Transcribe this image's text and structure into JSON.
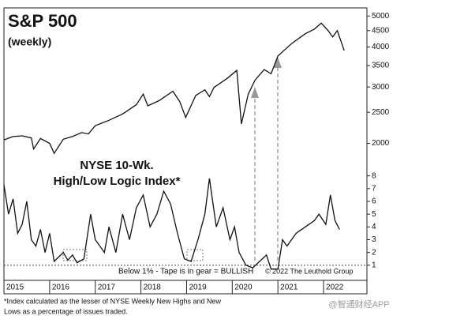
{
  "chart_data": [
    {
      "type": "line",
      "title": "S&P 500",
      "subtitle": "(weekly)",
      "log_scale": true,
      "color": "#111111",
      "xlim": [
        2015,
        2022.95
      ],
      "ylim": [
        1800,
        5300
      ],
      "yticks": [
        2000,
        2500,
        3000,
        3500,
        4000,
        4500,
        5000
      ],
      "x": [
        2015.0,
        2015.2,
        2015.4,
        2015.6,
        2015.65,
        2015.8,
        2016.0,
        2016.1,
        2016.3,
        2016.5,
        2016.7,
        2016.85,
        2017.0,
        2017.3,
        2017.6,
        2017.9,
        2018.05,
        2018.15,
        2018.4,
        2018.7,
        2018.85,
        2018.98,
        2019.2,
        2019.4,
        2019.5,
        2019.6,
        2019.9,
        2020.1,
        2020.2,
        2020.35,
        2020.5,
        2020.7,
        2020.85,
        2021.0,
        2021.3,
        2021.6,
        2021.8,
        2021.95,
        2022.1,
        2022.2,
        2022.3,
        2022.4,
        2022.45
      ],
      "values": [
        2050,
        2100,
        2110,
        2080,
        1920,
        2070,
        2000,
        1860,
        2060,
        2100,
        2160,
        2140,
        2270,
        2360,
        2470,
        2640,
        2850,
        2620,
        2720,
        2910,
        2700,
        2410,
        2820,
        2940,
        2800,
        2990,
        3200,
        3380,
        2300,
        2850,
        3150,
        3400,
        3300,
        3750,
        4100,
        4400,
        4550,
        4750,
        4500,
        4300,
        4500,
        4100,
        3900
      ]
    },
    {
      "type": "line",
      "title": [
        "NYSE 10-Wk.",
        "High/Low Logic Index*"
      ],
      "color": "#111111",
      "xlim": [
        2015,
        2022.95
      ],
      "ylim": [
        0,
        8.6
      ],
      "yticks": [
        1,
        2,
        3,
        4,
        5,
        6,
        7,
        8
      ],
      "xticks": [
        2015,
        2016,
        2017,
        2018,
        2019,
        2020,
        2021,
        2022
      ],
      "threshold": 1,
      "annotations": [
        "Below 1% - Tape is in gear = BULLISH",
        "© 2022 The Leuthold Group"
      ],
      "x": [
        2015.0,
        2015.1,
        2015.2,
        2015.3,
        2015.4,
        2015.5,
        2015.6,
        2015.7,
        2015.8,
        2015.9,
        2016.0,
        2016.1,
        2016.3,
        2016.4,
        2016.5,
        2016.6,
        2016.75,
        2016.9,
        2017.0,
        2017.2,
        2017.3,
        2017.45,
        2017.6,
        2017.75,
        2017.9,
        2018.05,
        2018.2,
        2018.35,
        2018.5,
        2018.65,
        2018.8,
        2018.95,
        2019.1,
        2019.25,
        2019.4,
        2019.5,
        2019.65,
        2019.8,
        2019.95,
        2020.05,
        2020.15,
        2020.3,
        2020.45,
        2020.6,
        2020.75,
        2020.85,
        2021.0,
        2021.1,
        2021.2,
        2021.4,
        2021.6,
        2021.8,
        2021.9,
        2022.05,
        2022.15,
        2022.25,
        2022.35
      ],
      "values": [
        7.3,
        5,
        6.2,
        3.5,
        4.2,
        6,
        3,
        2.5,
        3.8,
        2,
        3.5,
        1.3,
        2,
        1.4,
        1.8,
        1.2,
        1.5,
        5,
        3,
        2,
        4,
        2,
        5,
        3,
        5.5,
        6.5,
        4,
        5,
        6.8,
        5.8,
        3.5,
        1.5,
        1.3,
        3,
        5,
        7.8,
        4,
        5.5,
        3,
        4,
        2,
        1,
        0.8,
        1.3,
        1.8,
        0.7,
        0.7,
        3,
        2.5,
        3.5,
        4,
        4.5,
        5,
        4.2,
        6.5,
        4.5,
        3.8
      ]
    }
  ],
  "footnote": [
    "*Index calculated as the lesser of NYSE Weekly New Highs and New",
    "Lows as a percentage of issues traded."
  ],
  "watermark": "@智通财经APP"
}
